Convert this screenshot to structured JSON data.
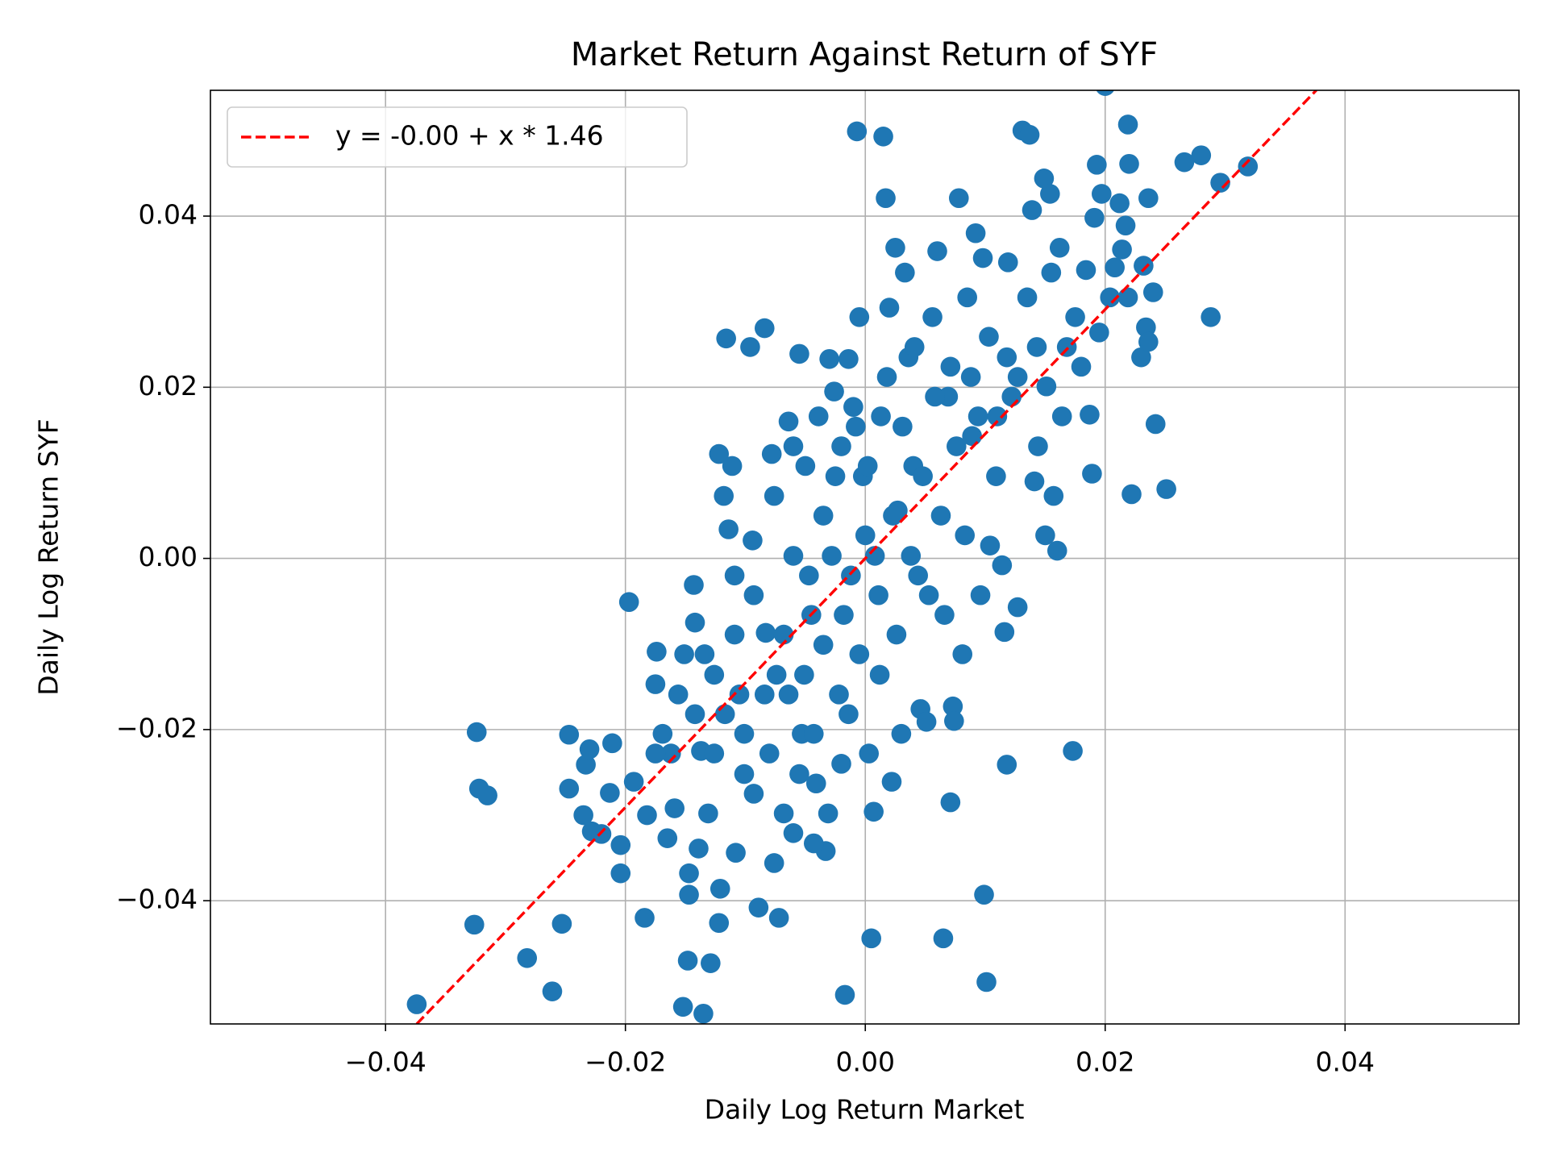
{
  "chart_data": {
    "type": "scatter",
    "title": "Market Return Against Return of SYF",
    "xlabel": "Daily Log Return Market",
    "ylabel": "Daily Log Return SYF",
    "xlim": [
      -0.0546,
      0.0545
    ],
    "ylim": [
      -0.0544,
      0.0547
    ],
    "xticks": [
      {
        "value": -0.04,
        "label": "−0.04"
      },
      {
        "value": -0.02,
        "label": "−0.02"
      },
      {
        "value": 0,
        "label": "0.00"
      },
      0.02,
      0.04
    ],
    "yticks": [
      {
        "value": -0.04,
        "label": "−0.04"
      },
      {
        "value": -0.02,
        "label": "−0.02"
      },
      {
        "value": 0,
        "label": "0.00"
      },
      0.02,
      0.04
    ],
    "grid": true,
    "legend": "upper left",
    "series": [
      {
        "type": "scatter",
        "color": "#1f77b4",
        "x": [
          -0.0374,
          -0.0324,
          -0.0326,
          -0.0322,
          -0.0315,
          -0.0282,
          -0.0261,
          -0.0253,
          -0.0247,
          -0.0247,
          -0.0233,
          -0.023,
          -0.0235,
          -0.0228,
          -0.022,
          -0.0213,
          -0.0211,
          -0.0204,
          -0.0204,
          -0.0197,
          -0.0193,
          -0.0184,
          -0.0182,
          -0.0175,
          -0.0174,
          -0.0169,
          -0.0165,
          -0.0162,
          -0.0159,
          -0.0156,
          -0.0152,
          -0.0148,
          -0.0147,
          -0.0147,
          -0.0143,
          -0.0142,
          -0.0139,
          -0.0137,
          -0.0135,
          -0.0131,
          -0.0129,
          -0.0126,
          -0.0122,
          -0.0122,
          -0.0121,
          -0.0118,
          -0.0116,
          -0.0114,
          -0.0111,
          -0.0109,
          -0.0108,
          -0.0105,
          -0.0101,
          -0.0096,
          -0.0094,
          -0.0089,
          -0.0084,
          -0.0083,
          -0.0078,
          -0.0074,
          -0.0072,
          -0.0068,
          -0.0064,
          -0.006,
          -0.0055,
          -0.0053,
          -0.005,
          -0.0045,
          -0.0041,
          -0.0035,
          -0.0033,
          -0.003,
          -0.0026,
          -0.0022,
          -0.002,
          -0.0017,
          -0.0014,
          -0.0012,
          -0.001,
          -0.0007,
          -0.0005,
          -0.0002,
          0.0,
          0.0003,
          0.0005,
          0.0007,
          0.0011,
          0.0013,
          0.0015,
          0.0017,
          0.002,
          0.0022,
          0.0025,
          0.0027,
          0.003,
          0.0033,
          0.0036,
          0.004,
          0.0044,
          0.0046,
          0.0051,
          0.0056,
          0.006,
          0.0065,
          0.0069,
          0.0071,
          0.0073,
          0.0074,
          0.0078,
          0.0081,
          0.0085,
          0.0089,
          0.0092,
          0.0096,
          0.0098,
          0.0099,
          0.0101,
          0.0104,
          0.0109,
          0.0114,
          0.0116,
          0.0118,
          0.0119,
          0.0122,
          0.0127,
          0.0131,
          0.0135,
          0.0137,
          0.0139,
          0.0141,
          0.0144,
          0.0149,
          0.015,
          0.0154,
          0.0155,
          0.0157,
          0.016,
          0.0162,
          0.0164,
          0.0168,
          0.0173,
          0.0175,
          0.018,
          0.0184,
          0.0187,
          0.0189,
          0.0191,
          0.0193,
          0.0195,
          0.0197,
          0.02,
          0.0204,
          0.0208,
          0.0212,
          0.0214,
          0.0217,
          0.0219,
          0.0219,
          0.022,
          0.0222,
          0.023,
          0.0232,
          0.0234,
          0.0236,
          0.0236,
          0.024,
          0.0242,
          0.0251,
          0.0266,
          0.028,
          0.0288,
          0.0296,
          0.0319,
          -0.0093,
          -0.0084,
          -0.0076,
          -0.0068,
          -0.006,
          -0.0051,
          -0.0047,
          -0.0039,
          -0.0035,
          -0.0028,
          -0.0025,
          -0.0018,
          -0.0014,
          -0.0008,
          -0.0005,
          0.0002,
          0.0008,
          0.0012,
          0.0018,
          0.0023,
          0.0026,
          0.0031,
          0.0038,
          0.0041,
          0.0048,
          0.0053,
          0.0058,
          0.0063,
          0.0066,
          0.0071,
          0.0076,
          0.0083,
          0.0088,
          0.0094,
          0.0103,
          0.011,
          0.0118,
          0.0127,
          0.0143,
          0.0151,
          -0.0109,
          -0.0117,
          -0.0101,
          -0.0093,
          -0.008,
          -0.0064,
          -0.0055,
          -0.0043,
          -0.0031,
          -0.002,
          -0.0142,
          -0.0134,
          -0.0151,
          -0.0175,
          -0.0126,
          -0.0076,
          -0.006,
          -0.0043
        ],
        "values": [
          -0.0521,
          -0.0203,
          -0.0428,
          -0.0269,
          -0.0277,
          -0.0467,
          -0.0506,
          -0.0427,
          -0.0206,
          -0.0269,
          -0.0241,
          -0.0223,
          -0.03,
          -0.0319,
          -0.0322,
          -0.0274,
          -0.0216,
          -0.0335,
          -0.0368,
          -0.0051,
          -0.0261,
          -0.042,
          -0.03,
          -0.0147,
          -0.0109,
          -0.0205,
          -0.0327,
          -0.0228,
          -0.0292,
          -0.0159,
          -0.0524,
          -0.047,
          -0.0368,
          -0.0393,
          -0.0031,
          -0.0075,
          -0.0339,
          -0.0225,
          -0.0532,
          -0.0298,
          -0.0473,
          -0.0136,
          -0.0426,
          0.0122,
          -0.0386,
          0.0073,
          0.0257,
          0.0034,
          0.0108,
          -0.002,
          -0.0344,
          -0.0159,
          -0.0252,
          0.0247,
          0.0021,
          -0.0408,
          0.0269,
          -0.0087,
          0.0122,
          -0.0136,
          -0.042,
          -0.0298,
          0.016,
          0.0003,
          0.0239,
          -0.0205,
          0.0108,
          -0.0066,
          -0.0263,
          0.005,
          -0.0342,
          0.0233,
          0.0195,
          -0.0159,
          0.0131,
          -0.051,
          0.0233,
          -0.002,
          0.0177,
          0.0499,
          0.0282,
          0.0096,
          0.0027,
          -0.0228,
          -0.0444,
          -0.0296,
          -0.0043,
          0.0166,
          0.0493,
          0.0421,
          0.0293,
          -0.0261,
          0.0363,
          0.0056,
          -0.0205,
          0.0334,
          0.0235,
          0.0108,
          -0.002,
          -0.0176,
          -0.0191,
          0.0282,
          0.0359,
          -0.0444,
          0.0189,
          -0.0285,
          -0.0173,
          -0.019,
          0.0421,
          -0.0112,
          0.0305,
          0.0143,
          0.038,
          -0.0043,
          0.0351,
          -0.0393,
          -0.0495,
          0.0015,
          0.0096,
          -0.0008,
          -0.0086,
          -0.0241,
          0.0346,
          0.0189,
          -0.0057,
          0.05,
          0.0305,
          0.0495,
          0.0407,
          0.009,
          0.0131,
          0.0444,
          0.0027,
          0.0426,
          0.0334,
          0.0073,
          0.0009,
          0.0363,
          0.0166,
          0.0247,
          -0.0225,
          0.0282,
          0.0224,
          0.0337,
          0.0168,
          0.0099,
          0.0398,
          0.046,
          0.0264,
          0.0426,
          0.0552,
          0.0305,
          0.034,
          0.0415,
          0.0361,
          0.0389,
          0.0507,
          0.0305,
          0.0461,
          0.0075,
          0.0235,
          0.0342,
          0.027,
          0.0421,
          0.0253,
          0.0311,
          0.0157,
          0.0081,
          0.0463,
          0.0471,
          0.0282,
          0.0439,
          0.0458,
          -0.0043,
          -0.0159,
          0.0073,
          -0.0089,
          0.0131,
          -0.0136,
          -0.002,
          0.0166,
          -0.0101,
          0.0003,
          0.0096,
          -0.0066,
          -0.0182,
          0.0154,
          -0.0112,
          0.0108,
          0.0003,
          -0.0136,
          0.0212,
          0.005,
          -0.0089,
          0.0154,
          0.0003,
          0.0247,
          0.0096,
          -0.0043,
          0.0189,
          0.005,
          -0.0066,
          0.0224,
          0.0131,
          0.0027,
          0.0212,
          0.0166,
          0.0259,
          0.0166,
          0.0235,
          0.0212,
          0.0247,
          0.0201,
          -0.0089,
          -0.0182,
          -0.0205,
          -0.0275,
          -0.0228,
          -0.0159,
          -0.0252,
          -0.0205,
          -0.0298,
          -0.024,
          -0.0182,
          -0.0112,
          -0.0112,
          -0.0228,
          -0.0228,
          -0.0356,
          -0.0321,
          -0.0333
        ]
      },
      {
        "type": "line",
        "name": "y = -0.00 + x * 1.46",
        "color": "#ff0000",
        "dashed": true,
        "x": [
          -0.0374,
          0.0376
        ],
        "values": [
          -0.0544,
          0.0547
        ]
      }
    ]
  }
}
